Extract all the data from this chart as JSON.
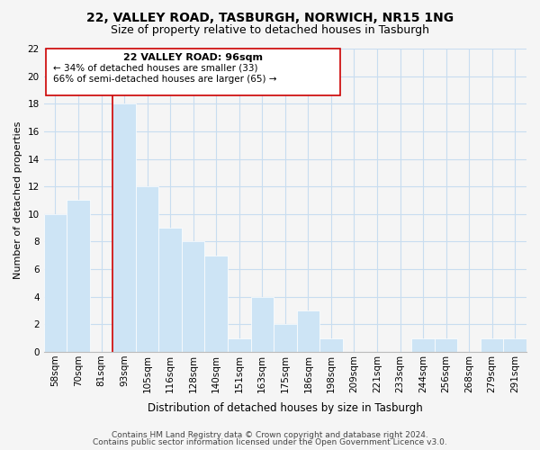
{
  "title": "22, VALLEY ROAD, TASBURGH, NORWICH, NR15 1NG",
  "subtitle": "Size of property relative to detached houses in Tasburgh",
  "xlabel": "Distribution of detached houses by size in Tasburgh",
  "ylabel": "Number of detached properties",
  "bar_labels": [
    "58sqm",
    "70sqm",
    "81sqm",
    "93sqm",
    "105sqm",
    "116sqm",
    "128sqm",
    "140sqm",
    "151sqm",
    "163sqm",
    "175sqm",
    "186sqm",
    "198sqm",
    "209sqm",
    "221sqm",
    "233sqm",
    "244sqm",
    "256sqm",
    "268sqm",
    "279sqm",
    "291sqm"
  ],
  "bar_values": [
    10,
    11,
    0,
    18,
    12,
    9,
    8,
    7,
    1,
    4,
    2,
    3,
    1,
    0,
    0,
    0,
    1,
    1,
    0,
    1,
    1
  ],
  "bar_color": "#cde4f5",
  "highlight_index": 3,
  "ylim": [
    0,
    22
  ],
  "yticks": [
    0,
    2,
    4,
    6,
    8,
    10,
    12,
    14,
    16,
    18,
    20,
    22
  ],
  "annotation_title": "22 VALLEY ROAD: 96sqm",
  "annotation_line1": "← 34% of detached houses are smaller (33)",
  "annotation_line2": "66% of semi-detached houses are larger (65) →",
  "footer_line1": "Contains HM Land Registry data © Crown copyright and database right 2024.",
  "footer_line2": "Contains public sector information licensed under the Open Government Licence v3.0.",
  "bg_color": "#f5f5f5",
  "grid_color": "#c8ddf0",
  "red_line_color": "#cc0000",
  "ann_box_color": "#cc0000",
  "title_fontsize": 10,
  "subtitle_fontsize": 9,
  "ylabel_fontsize": 8,
  "xlabel_fontsize": 8.5,
  "tick_fontsize": 7.5,
  "footer_fontsize": 6.5
}
